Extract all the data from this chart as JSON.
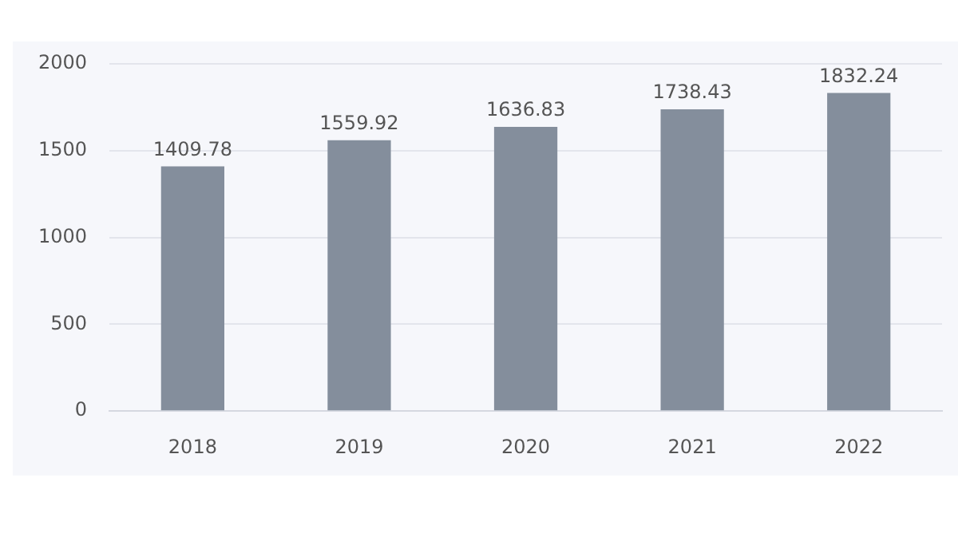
{
  "chart_data": {
    "type": "bar",
    "categories": [
      "2018",
      "2019",
      "2020",
      "2021",
      "2022"
    ],
    "values": [
      1409.78,
      1559.92,
      1636.83,
      1738.43,
      1832.24
    ],
    "color": "#848e9c",
    "ylim": [
      0,
      2000
    ],
    "yticks": [
      0,
      500,
      1000,
      1500,
      2000
    ],
    "grid": "y",
    "data_labels": true
  }
}
